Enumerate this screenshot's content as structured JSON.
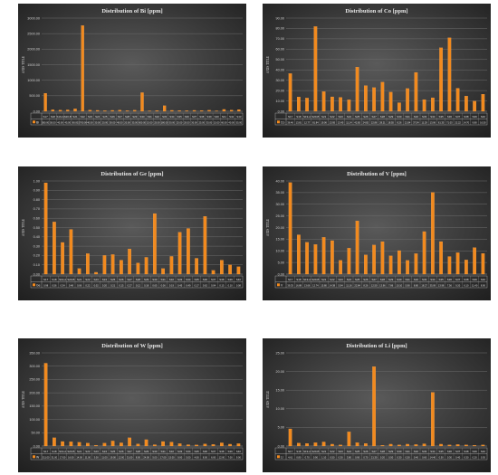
{
  "chart_data": [
    {
      "type": "bar",
      "title": "Distribution of Bi  [ppm]",
      "ylabel": "AXIS TITLE",
      "ylim": [
        0,
        3000
      ],
      "yticks": [
        "0.00",
        "500.00",
        "1000.00",
        "1500.00",
        "2000.00",
        "2500.00",
        "3000.00"
      ],
      "categories": [
        "S17",
        "S18",
        "S19-A",
        "S20-B",
        "S21",
        "S22",
        "S23",
        "S24",
        "S25",
        "S26",
        "S27",
        "S28",
        "S29",
        "S30",
        "S31",
        "S32",
        "S33",
        "S34",
        "S35",
        "S36",
        "S37",
        "S38",
        "S39",
        "S40",
        "S41",
        "S42",
        "S43"
      ],
      "series": [
        {
          "name": "Bi",
          "values": [
            580,
            50,
            40,
            45,
            80,
            2760,
            40,
            30,
            20,
            30,
            40,
            20,
            35,
            600,
            15,
            25,
            180,
            30,
            25,
            20,
            30,
            25,
            35,
            15,
            60,
            40,
            55
          ]
        }
      ],
      "color": "#f28a1e"
    },
    {
      "type": "bar",
      "title": "Distribution of Co  [ppm]",
      "ylabel": "AXIS TITLE",
      "ylim": [
        0,
        90
      ],
      "yticks": [
        "0.00",
        "10.00",
        "20.00",
        "30.00",
        "40.00",
        "50.00",
        "60.00",
        "70.00",
        "80.00",
        "90.00"
      ],
      "categories": [
        "S17",
        "S18",
        "S19-A",
        "S20-B",
        "S21",
        "S22",
        "S23",
        "S24",
        "S25",
        "S26",
        "S27",
        "S28",
        "S29",
        "S30",
        "S31",
        "S32",
        "S33",
        "S34",
        "S35",
        "S36",
        "S37",
        "S38",
        "S39",
        "S40"
      ],
      "series": [
        {
          "name": "Co",
          "values": [
            36.46,
            13.81,
            12.77,
            81.84,
            19.06,
            13.95,
            13.45,
            11.14,
            42.65,
            24.82,
            22.86,
            28.21,
            18.55,
            8.26,
            21.94,
            37.54,
            11.29,
            13.06,
            61.35,
            71.03,
            22.22,
            14.7,
            9.8,
            16.5
          ]
        }
      ],
      "color": "#f28a1e"
    },
    {
      "type": "bar",
      "title": "Distribution of Ge  [ppm]",
      "ylabel": "AXIS TITLE",
      "ylim": [
        0,
        1.0
      ],
      "yticks": [
        "0.00",
        "0.10",
        "0.20",
        "0.30",
        "0.40",
        "0.50",
        "0.60",
        "0.70",
        "0.80",
        "0.90",
        "1.00"
      ],
      "categories": [
        "S17",
        "S18",
        "S19-A",
        "S20-B",
        "S21",
        "S22",
        "S23",
        "S24",
        "S25",
        "S26",
        "S27",
        "S28",
        "S29",
        "S30",
        "S31",
        "S32",
        "S33",
        "S34",
        "S35",
        "S36",
        "S37",
        "S38",
        "S39",
        "S40"
      ],
      "series": [
        {
          "name": "Ge",
          "values": [
            0.98,
            0.56,
            0.34,
            0.48,
            0.06,
            0.22,
            0.02,
            0.2,
            0.21,
            0.15,
            0.27,
            0.12,
            0.18,
            0.65,
            0.06,
            0.19,
            0.45,
            0.49,
            0.17,
            0.62,
            0.04,
            0.15,
            0.1,
            0.08
          ]
        }
      ],
      "color": "#f28a1e"
    },
    {
      "type": "bar",
      "title": "Distribution of V  [ppm]",
      "ylabel": "AXIS TITLE",
      "ylim": [
        0,
        40
      ],
      "yticks": [
        "0.00",
        "5.00",
        "10.00",
        "15.00",
        "20.00",
        "25.00",
        "30.00",
        "35.00",
        "40.00"
      ],
      "categories": [
        "S17",
        "S18",
        "S19-A",
        "S20-B",
        "S21",
        "S22",
        "S23",
        "S24",
        "S25",
        "S26",
        "S27",
        "S28",
        "S29",
        "S30",
        "S31",
        "S32",
        "S33",
        "S34",
        "S35",
        "S36",
        "S37",
        "S38",
        "S39",
        "S40"
      ],
      "series": [
        {
          "name": "V",
          "values": [
            39.33,
            16.88,
            13.66,
            12.74,
            15.8,
            14.38,
            5.94,
            11.16,
            22.84,
            8.26,
            12.5,
            13.96,
            7.86,
            10.1,
            5.9,
            8.8,
            18.27,
            35.09,
            13.98,
            7.56,
            9.2,
            6.1,
            11.4,
            8.9
          ]
        }
      ],
      "color": "#f28a1e"
    },
    {
      "type": "bar",
      "title": "Distribution of W  [ppm]",
      "ylabel": "AXIS TITLE",
      "ylim": [
        0,
        350
      ],
      "yticks": [
        "0.00",
        "50.00",
        "100.00",
        "150.00",
        "200.00",
        "250.00",
        "300.00",
        "350.00"
      ],
      "categories": [
        "S17",
        "S18",
        "S19-A",
        "S20-B",
        "S21",
        "S22",
        "S23",
        "S24",
        "S25",
        "S26",
        "S27",
        "S28",
        "S29",
        "S30",
        "S31",
        "S32",
        "S33",
        "S34",
        "S35",
        "S36",
        "S37",
        "S38",
        "S39",
        "S40"
      ],
      "series": [
        {
          "name": "W",
          "values": [
            311,
            31,
            17,
            16,
            14,
            11,
            3,
            11,
            19,
            12,
            31,
            8,
            24,
            5,
            17,
            15,
            9,
            5,
            4,
            8,
            6,
            12,
            7,
            9
          ]
        }
      ],
      "color": "#f28a1e"
    },
    {
      "type": "bar",
      "title": "Distribution of Li  [ppm]",
      "ylabel": "AXIS TITLE",
      "ylim": [
        0,
        25
      ],
      "yticks": [
        "0.00",
        "5.00",
        "10.00",
        "15.00",
        "20.00",
        "25.00"
      ],
      "categories": [
        "S17",
        "S18",
        "S19-A",
        "S20-B",
        "S21",
        "S22",
        "S23",
        "S24",
        "S25",
        "S26",
        "S27",
        "S28",
        "S29",
        "S30",
        "S31",
        "S32",
        "S33",
        "S34",
        "S35",
        "S36",
        "S37",
        "S38",
        "S39",
        "S40"
      ],
      "series": [
        {
          "name": "Li",
          "values": [
            4.61,
            0.8,
            0.7,
            0.9,
            1.1,
            0.5,
            0.3,
            3.8,
            0.9,
            0.7,
            21.3,
            0.2,
            0.5,
            0.3,
            0.5,
            0.4,
            0.6,
            14.4,
            0.5,
            0.3,
            0.4,
            0.3,
            0.2,
            0.3
          ]
        }
      ],
      "color": "#f28a1e"
    }
  ]
}
